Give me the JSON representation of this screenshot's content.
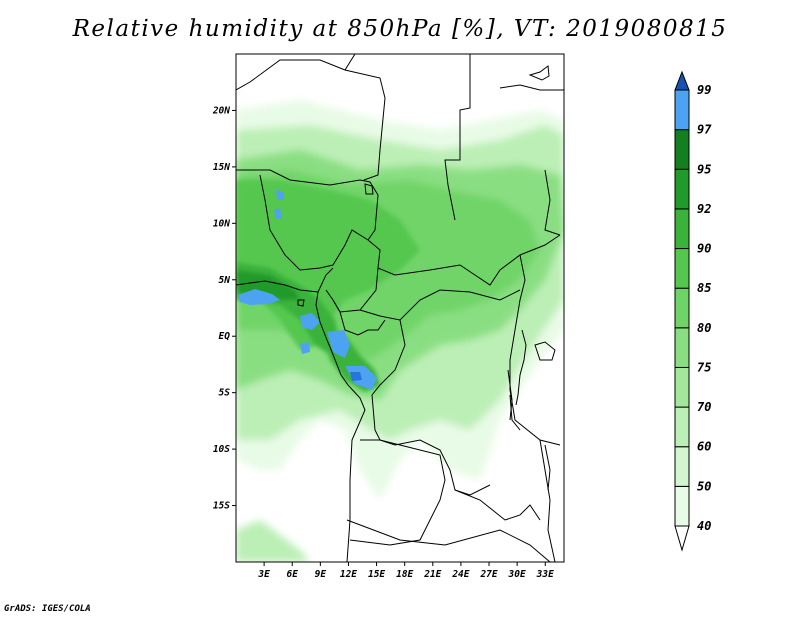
{
  "title": "Relative humidity at 850hPa [%], VT: 2019080815",
  "credit": "GrADS: IGES/COLA",
  "map": {
    "lon_range": [
      0,
      35
    ],
    "lat_range": [
      -20,
      25
    ],
    "lat_ticks": [
      {
        "lat": 20,
        "label": "20N"
      },
      {
        "lat": 15,
        "label": "15N"
      },
      {
        "lat": 10,
        "label": "10N"
      },
      {
        "lat": 5,
        "label": "5N"
      },
      {
        "lat": 0,
        "label": "EQ"
      },
      {
        "lat": -5,
        "label": "5S"
      },
      {
        "lat": -10,
        "label": "10S"
      },
      {
        "lat": -15,
        "label": "15S"
      }
    ],
    "lon_ticks": [
      {
        "lon": 3,
        "label": "3E"
      },
      {
        "lon": 6,
        "label": "6E"
      },
      {
        "lon": 9,
        "label": "9E"
      },
      {
        "lon": 12,
        "label": "12E"
      },
      {
        "lon": 15,
        "label": "15E"
      },
      {
        "lon": 18,
        "label": "18E"
      },
      {
        "lon": 21,
        "label": "21E"
      },
      {
        "lon": 24,
        "label": "24E"
      },
      {
        "lon": 27,
        "label": "27E"
      },
      {
        "lon": 30,
        "label": "30E"
      },
      {
        "lon": 33,
        "label": "33E"
      }
    ]
  },
  "colorbar": {
    "levels": [
      "40",
      "50",
      "60",
      "70",
      "75",
      "80",
      "85",
      "90",
      "92",
      "95",
      "97",
      "99"
    ],
    "colors": [
      "#e8fbe6",
      "#d3f5cf",
      "#bcefb6",
      "#a3e79b",
      "#8ade82",
      "#6fd467",
      "#55c74f",
      "#3bb23a",
      "#229a2a",
      "#147f1f",
      "#4ea2f2",
      "#2576d6",
      "#1552b4"
    ]
  }
}
